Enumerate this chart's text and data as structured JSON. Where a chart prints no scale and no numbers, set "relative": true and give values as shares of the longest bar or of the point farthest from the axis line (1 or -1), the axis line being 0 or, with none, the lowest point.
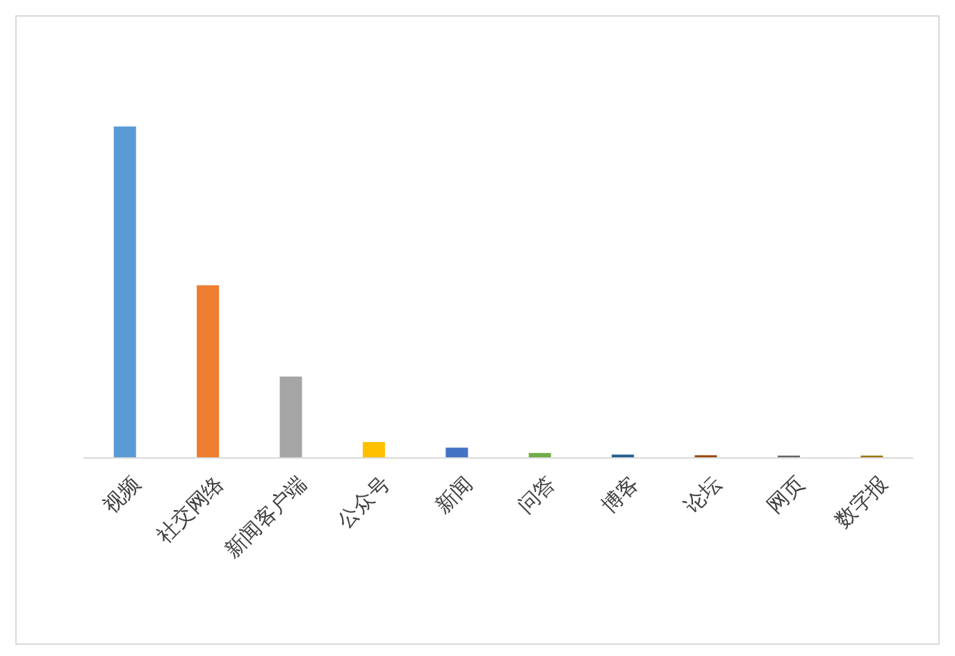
{
  "chart_data": {
    "type": "bar",
    "relative": true,
    "categories": [
      "视频",
      "社交网络",
      "新闻客户端",
      "公众号",
      "新闻",
      "问答",
      "博客",
      "论坛",
      "网页",
      "数字报"
    ],
    "values": [
      1,
      0.52,
      0.244,
      0.046,
      0.029,
      0.013,
      0.008,
      0.006,
      0.005,
      0.005
    ],
    "colors": [
      "#5b9bd5",
      "#ed7d31",
      "#a5a5a5",
      "#ffc000",
      "#4472c4",
      "#70ad47",
      "#255e91",
      "#9e480e",
      "#636363",
      "#997300"
    ]
  }
}
